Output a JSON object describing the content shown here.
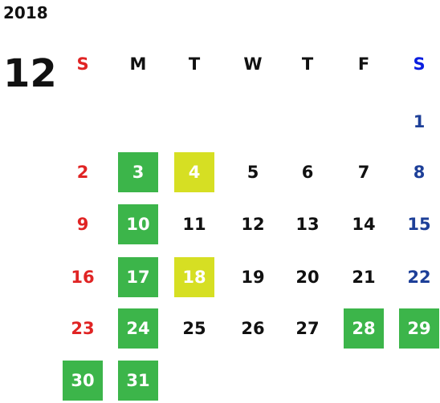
{
  "year": "2018",
  "month": "12",
  "weekdays": [
    "S",
    "M",
    "T",
    "W",
    "T",
    "F",
    "S"
  ],
  "highlight_colors": {
    "green": "#3cb54a",
    "yellow": "#d6df23"
  },
  "weeks": [
    [
      null,
      null,
      null,
      null,
      null,
      null,
      {
        "day": "1"
      }
    ],
    [
      {
        "day": "2"
      },
      {
        "day": "3",
        "highlight": "green"
      },
      {
        "day": "4",
        "highlight": "yellow"
      },
      {
        "day": "5"
      },
      {
        "day": "6"
      },
      {
        "day": "7"
      },
      {
        "day": "8"
      }
    ],
    [
      {
        "day": "9"
      },
      {
        "day": "10",
        "highlight": "green"
      },
      {
        "day": "11"
      },
      {
        "day": "12"
      },
      {
        "day": "13"
      },
      {
        "day": "14"
      },
      {
        "day": "15"
      }
    ],
    [
      {
        "day": "16"
      },
      {
        "day": "17",
        "highlight": "green"
      },
      {
        "day": "18",
        "highlight": "yellow"
      },
      {
        "day": "19"
      },
      {
        "day": "20"
      },
      {
        "day": "21"
      },
      {
        "day": "22"
      }
    ],
    [
      {
        "day": "23"
      },
      {
        "day": "24",
        "highlight": "green"
      },
      {
        "day": "25"
      },
      {
        "day": "26"
      },
      {
        "day": "27"
      },
      {
        "day": "28",
        "highlight": "green"
      },
      {
        "day": "29",
        "highlight": "green"
      }
    ],
    [
      {
        "day": "30",
        "highlight": "green"
      },
      {
        "day": "31",
        "highlight": "green"
      },
      null,
      null,
      null,
      null,
      null
    ]
  ]
}
